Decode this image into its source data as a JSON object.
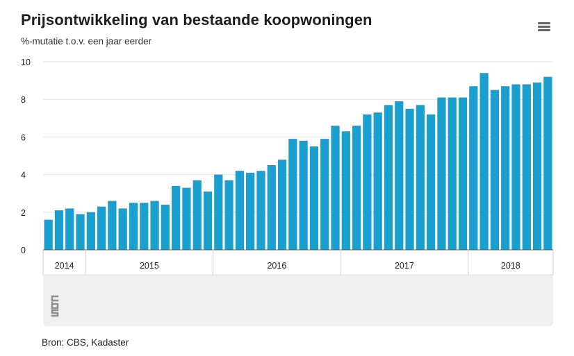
{
  "title": "Prijsontwikkeling van bestaande koopwoningen",
  "subtitle": "%-mutatie t.o.v. een jaar eerder",
  "menu_icon": "hamburger-menu-icon",
  "logo": {
    "name": "cbs-logo",
    "text": "cbs"
  },
  "source": "Bron: CBS, Kadaster",
  "colors": {
    "bar": "#1a9fce",
    "gridline": "#e2e2e2",
    "axis": "#555555",
    "footer_background": "#efefef",
    "logo": "#8e8e8e"
  },
  "chart_data": {
    "type": "bar",
    "title": "Prijsontwikkeling van bestaande koopwoningen",
    "ylabel": "%-mutatie t.o.v. een jaar eerder",
    "xlabel": "",
    "ylim": [
      0,
      10
    ],
    "yticks": [
      0,
      2,
      4,
      6,
      8,
      10
    ],
    "grid": true,
    "years": [
      {
        "label": "2014",
        "months": 4
      },
      {
        "label": "2015",
        "months": 12
      },
      {
        "label": "2016",
        "months": 12
      },
      {
        "label": "2017",
        "months": 12
      },
      {
        "label": "2018",
        "months": 8
      }
    ],
    "categories": [
      "2014-09",
      "2014-10",
      "2014-11",
      "2014-12",
      "2015-01",
      "2015-02",
      "2015-03",
      "2015-04",
      "2015-05",
      "2015-06",
      "2015-07",
      "2015-08",
      "2015-09",
      "2015-10",
      "2015-11",
      "2015-12",
      "2016-01",
      "2016-02",
      "2016-03",
      "2016-04",
      "2016-05",
      "2016-06",
      "2016-07",
      "2016-08",
      "2016-09",
      "2016-10",
      "2016-11",
      "2016-12",
      "2017-01",
      "2017-02",
      "2017-03",
      "2017-04",
      "2017-05",
      "2017-06",
      "2017-07",
      "2017-08",
      "2017-09",
      "2017-10",
      "2017-11",
      "2017-12",
      "2018-01",
      "2018-02",
      "2018-03",
      "2018-04",
      "2018-05",
      "2018-06",
      "2018-07",
      "2018-08"
    ],
    "values": [
      1.6,
      2.1,
      2.2,
      1.9,
      2.0,
      2.3,
      2.6,
      2.2,
      2.5,
      2.5,
      2.6,
      2.4,
      3.4,
      3.3,
      3.7,
      3.1,
      4.0,
      3.7,
      4.2,
      4.1,
      4.2,
      4.5,
      4.8,
      5.9,
      5.8,
      5.5,
      5.9,
      6.6,
      6.3,
      6.6,
      7.2,
      7.3,
      7.7,
      7.9,
      7.5,
      7.7,
      7.2,
      8.1,
      8.1,
      8.1,
      8.7,
      9.4,
      8.5,
      8.7,
      8.8,
      8.8,
      8.9,
      9.2
    ]
  }
}
